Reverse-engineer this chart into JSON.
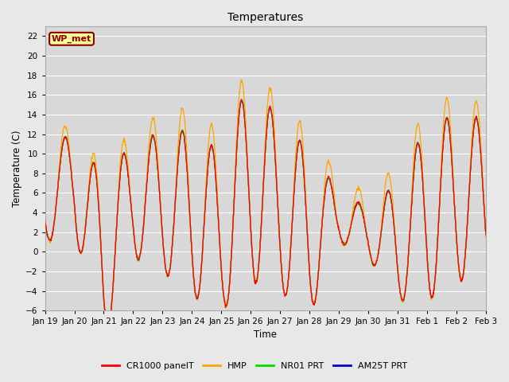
{
  "title": "Temperatures",
  "xlabel": "Time",
  "ylabel": "Temperature (C)",
  "ylim": [
    -6,
    23
  ],
  "yticks": [
    -6,
    -4,
    -2,
    0,
    2,
    4,
    6,
    8,
    10,
    12,
    14,
    16,
    18,
    20,
    22
  ],
  "legend_labels": [
    "CR1000 panelT",
    "HMP",
    "NR01 PRT",
    "AM25T PRT"
  ],
  "legend_colors": [
    "#ff0000",
    "#ffa500",
    "#00dd00",
    "#0000cc"
  ],
  "annotation_text": "WP_met",
  "annotation_bg": "#ffff99",
  "annotation_border": "#8b0000",
  "annotation_text_color": "#8b0000",
  "x_tick_labels": [
    "Jan 19",
    "Jan 20",
    "Jan 21",
    "Jan 22",
    "Jan 23",
    "Jan 24",
    "Jan 25",
    "Jan 26",
    "Jan 27",
    "Jan 28",
    "Jan 29",
    "Jan 30",
    "Jan 31",
    "Feb 1",
    "Feb 2",
    "Feb 3"
  ],
  "n_days": 15,
  "points_per_day": 96,
  "amp_values": [
    4.0,
    5.5,
    8.0,
    6.0,
    7.0,
    8.5,
    8.0,
    10.5,
    8.5,
    8.5,
    2.5,
    2.5,
    6.0,
    9.0,
    8.5,
    8.0
  ],
  "base_values": [
    5.0,
    7.5,
    -1.0,
    5.5,
    5.0,
    4.0,
    2.0,
    7.5,
    4.5,
    2.0,
    3.5,
    2.0,
    1.0,
    4.0,
    5.5,
    5.5
  ],
  "hmp_offset": [
    1.5,
    1.0,
    1.0,
    1.5,
    2.0,
    2.5,
    2.0,
    2.0,
    2.0,
    2.0,
    1.5,
    1.5,
    2.0,
    2.0,
    2.0,
    1.5
  ]
}
